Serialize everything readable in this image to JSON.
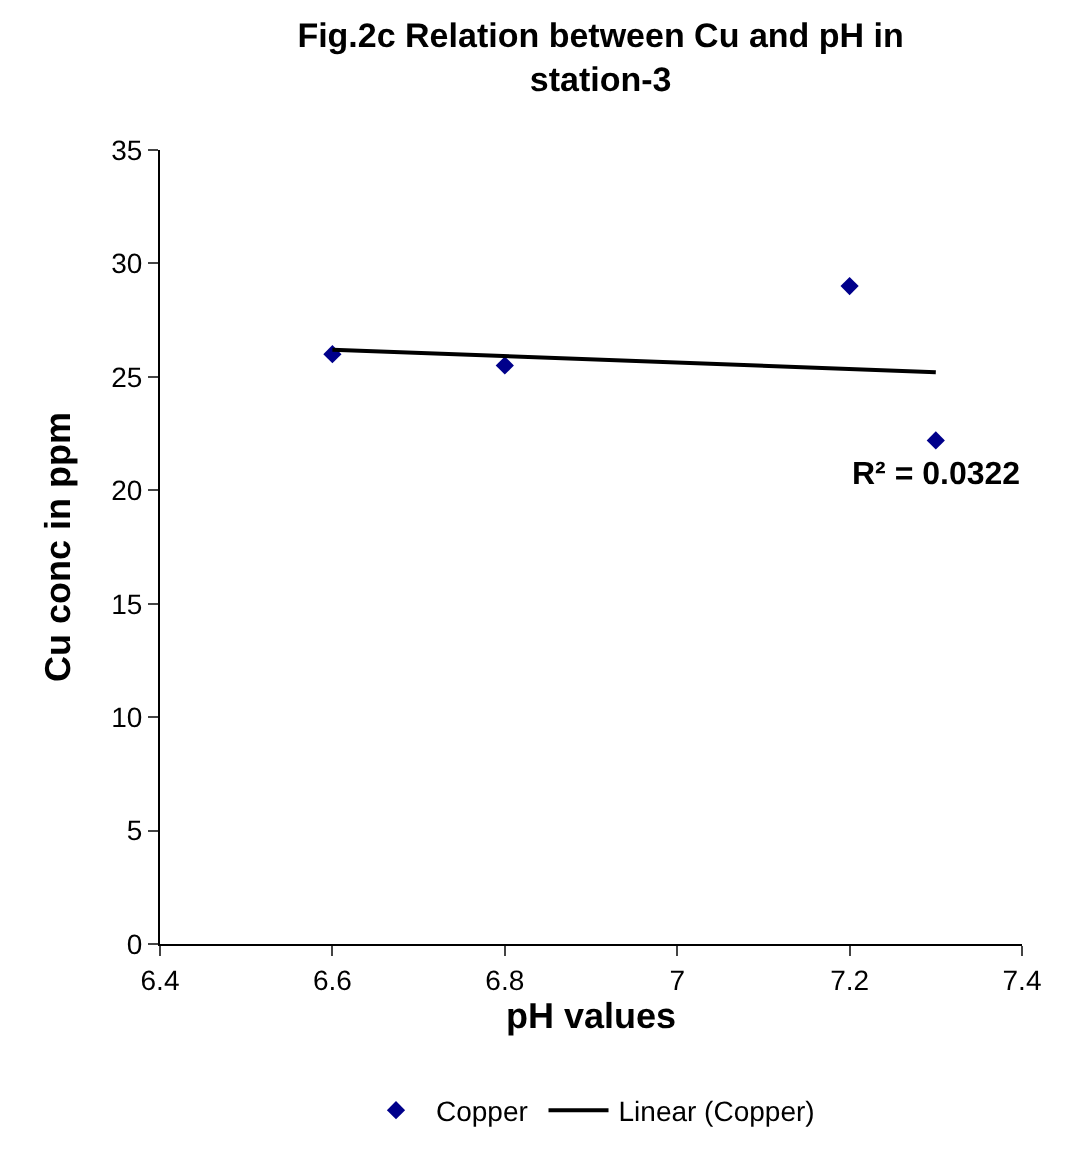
{
  "chart_data": {
    "type": "scatter",
    "title": "Fig.2c Relation between Cu and pH in station-3",
    "xlabel": "pH values",
    "ylabel": "Cu conc in ppm",
    "series": [
      {
        "name": "Copper",
        "color": "#00008b",
        "x": [
          6.6,
          6.8,
          7.2,
          7.3
        ],
        "values": [
          26,
          25.5,
          29,
          22.2
        ],
        "marker": "diamond"
      },
      {
        "name": "Linear (Copper)",
        "type": "line",
        "color": "#000000",
        "x": [
          6.6,
          7.3
        ],
        "values": [
          26.2,
          25.2
        ],
        "line_style": "solid"
      }
    ],
    "annotations": [
      "R² = 0.0322"
    ],
    "xlim": [
      6.4,
      7.4
    ],
    "xticks": [
      6.4,
      6.6,
      6.8,
      {
        "value": 7,
        "label": "7"
      },
      7.2,
      7.4
    ],
    "ylim": [
      0,
      35
    ],
    "yticks": [
      0,
      5,
      10,
      15,
      20,
      25,
      30,
      35
    ],
    "legend": "bottom"
  }
}
